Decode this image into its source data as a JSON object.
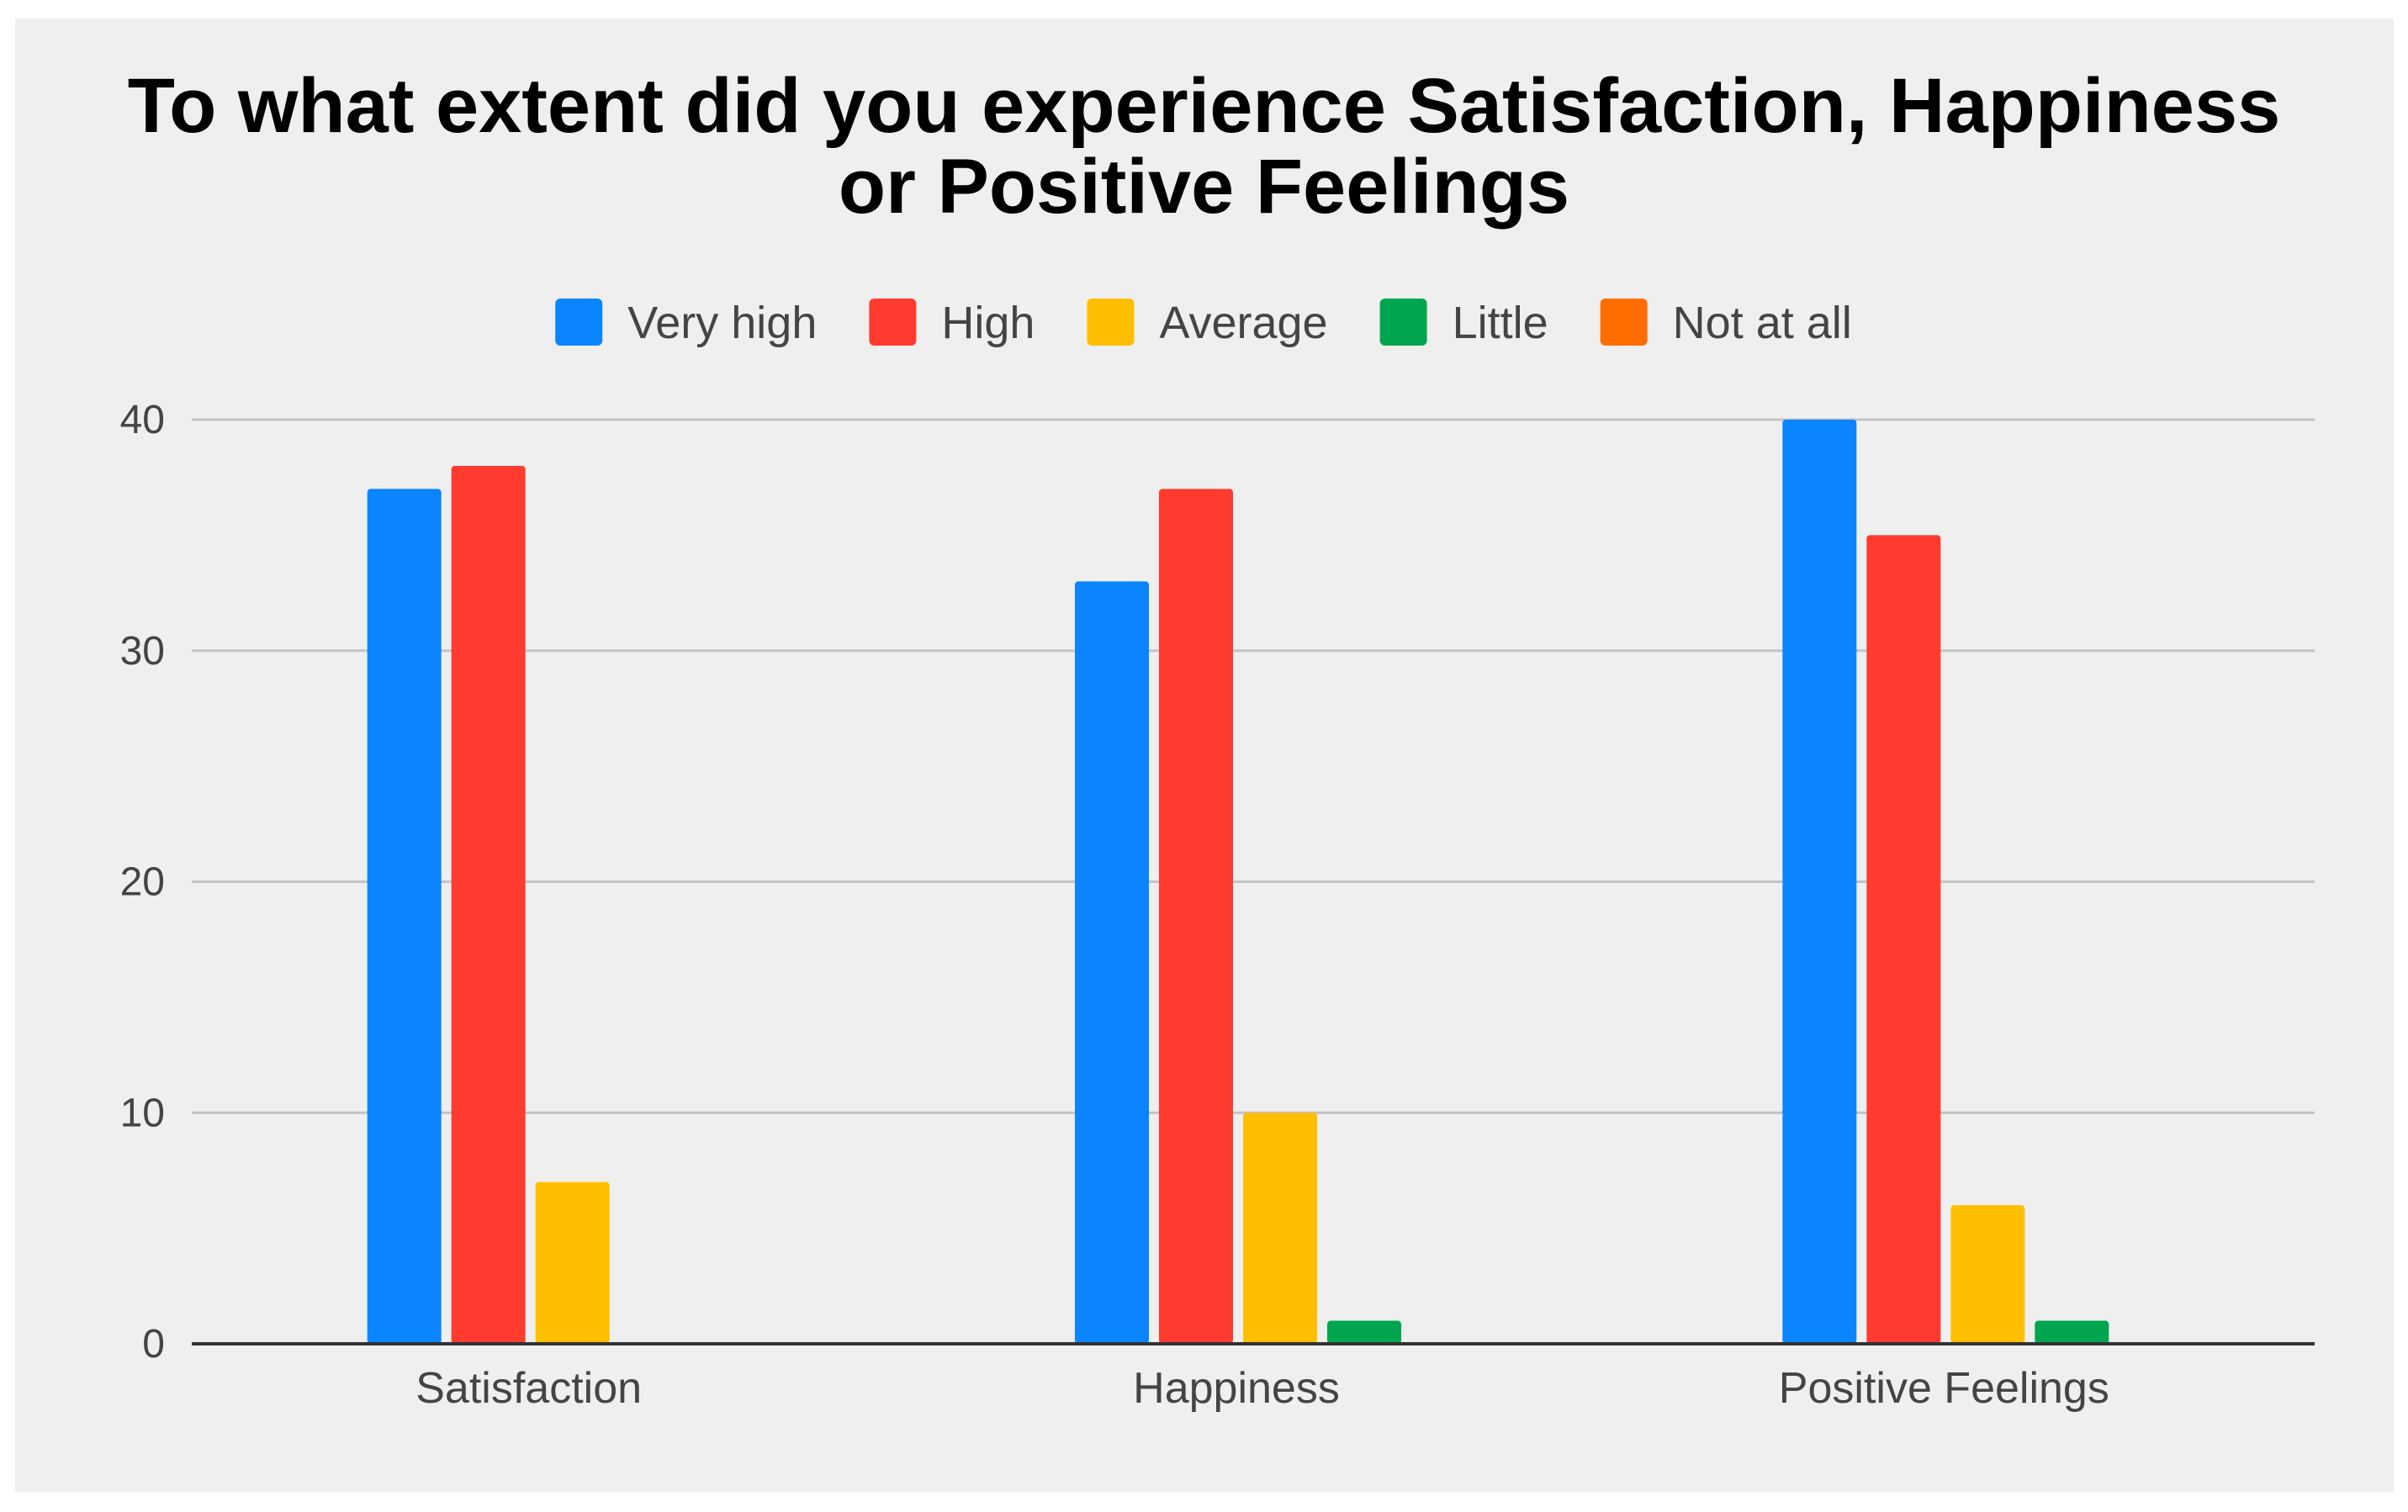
{
  "chart_data": {
    "type": "bar",
    "title_lines": [
      "To what extent did you experience Satisfaction, Happiness",
      "or Positive Feelings"
    ],
    "categories": [
      "Satisfaction",
      "Happiness",
      "Positive Feelings"
    ],
    "series": [
      {
        "name": "Very high",
        "color": "#0a84ff",
        "values": [
          37,
          33,
          40
        ]
      },
      {
        "name": "High",
        "color": "#ff3b30",
        "values": [
          38,
          37,
          35
        ]
      },
      {
        "name": "Average",
        "color": "#ffbf00",
        "values": [
          7,
          10,
          6
        ]
      },
      {
        "name": "Little",
        "color": "#00a550",
        "values": [
          0,
          1,
          1
        ]
      },
      {
        "name": "Not at all",
        "color": "#ff6d00",
        "values": [
          0,
          0,
          0
        ]
      }
    ],
    "yticks": [
      "0",
      "10",
      "20",
      "30",
      "40"
    ],
    "ylim": [
      0,
      40
    ],
    "xlabel": "",
    "ylabel": "",
    "grid": true,
    "legend_position": "top-center"
  }
}
